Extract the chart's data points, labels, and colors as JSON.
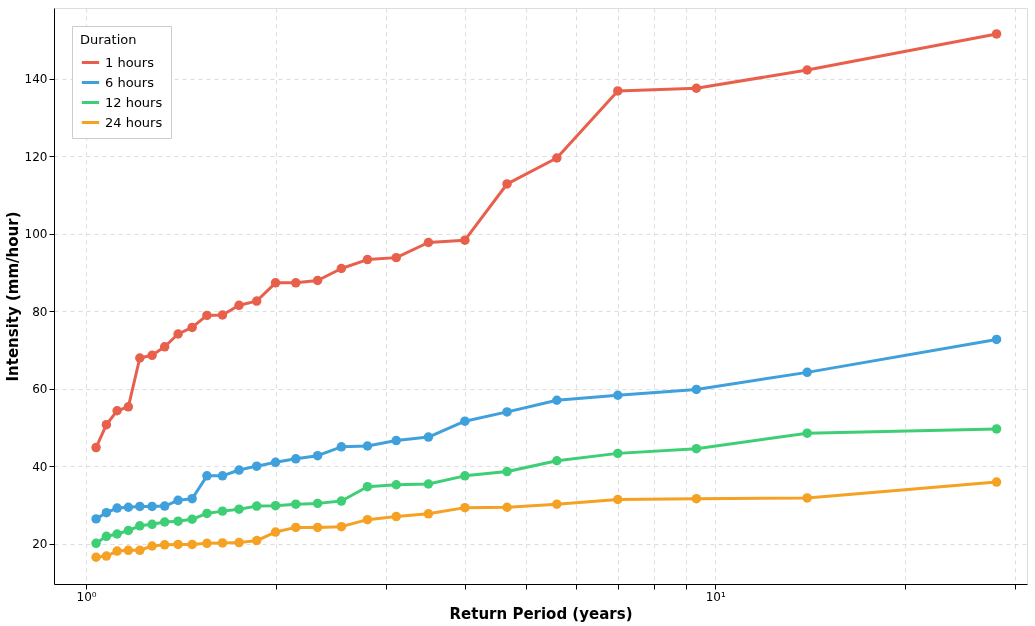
{
  "chart_data": {
    "type": "line",
    "xlabel": "Return Period (years)",
    "ylabel": "Intensity (mm/hour)",
    "legend_title": "Duration",
    "legend": "top left",
    "grid": true,
    "marker": "circle",
    "line_style": "solid",
    "log": "x",
    "x": [
      1.037,
      1.077,
      1.12,
      1.167,
      1.217,
      1.273,
      1.333,
      1.4,
      1.474,
      1.556,
      1.647,
      1.75,
      1.867,
      2,
      2.154,
      2.333,
      2.545,
      2.8,
      3.111,
      3.5,
      4,
      4.667,
      5.6,
      7,
      9.333,
      14,
      28
    ],
    "xlim": [
      0.889,
      31.3
    ],
    "xticks": [
      {
        "value": 1,
        "label": "10⁰"
      },
      {
        "value": 2,
        "label": null
      },
      {
        "value": 3,
        "label": null
      },
      {
        "value": 4,
        "label": null
      },
      {
        "value": 5,
        "label": null
      },
      {
        "value": 6,
        "label": null
      },
      {
        "value": 7,
        "label": null
      },
      {
        "value": 8,
        "label": null
      },
      {
        "value": 9,
        "label": null
      },
      {
        "value": 10,
        "label": "10¹"
      },
      {
        "value": 20,
        "label": null
      },
      {
        "value": 30,
        "label": null
      }
    ],
    "ylim": [
      9.6,
      158.2
    ],
    "yticks": [
      20,
      40,
      60,
      80,
      100,
      120,
      140
    ],
    "series": [
      {
        "name": "1 hours",
        "color": "#e8604c",
        "values": [
          44.8,
          50.7,
          54.3,
          55.3,
          67.9,
          68.6,
          70.8,
          74.1,
          75.8,
          78.9,
          79.0,
          81.5,
          82.6,
          87.3,
          87.3,
          87.9,
          91.0,
          93.3,
          93.8,
          97.7,
          98.3,
          112.8,
          119.5,
          136.8,
          137.5,
          142.2,
          151.5
        ]
      },
      {
        "name": "6 hours",
        "color": "#3fa0dc",
        "values": [
          26.4,
          28.0,
          29.2,
          29.4,
          29.6,
          29.6,
          29.7,
          31.2,
          31.6,
          37.5,
          37.5,
          39.0,
          40.0,
          41.0,
          41.9,
          42.7,
          45.0,
          45.2,
          46.6,
          47.5,
          51.6,
          54.0,
          57.0,
          58.3,
          59.8,
          64.2,
          72.7
        ]
      },
      {
        "name": "12 hours",
        "color": "#3ecf76",
        "values": [
          20.1,
          21.9,
          22.5,
          23.4,
          24.6,
          25.0,
          25.6,
          25.8,
          26.3,
          27.8,
          28.4,
          28.9,
          29.7,
          29.8,
          30.2,
          30.4,
          31.0,
          34.7,
          35.2,
          35.4,
          37.5,
          38.6,
          41.4,
          43.3,
          44.5,
          48.5,
          49.6
        ]
      },
      {
        "name": "24 hours",
        "color": "#f5a124",
        "values": [
          16.5,
          16.8,
          18.1,
          18.3,
          18.3,
          19.4,
          19.7,
          19.8,
          19.8,
          20.1,
          20.2,
          20.3,
          20.8,
          23.0,
          24.2,
          24.2,
          24.4,
          26.2,
          27.0,
          27.7,
          29.3,
          29.4,
          30.2,
          31.4,
          31.6,
          31.8,
          35.9
        ]
      }
    ]
  }
}
